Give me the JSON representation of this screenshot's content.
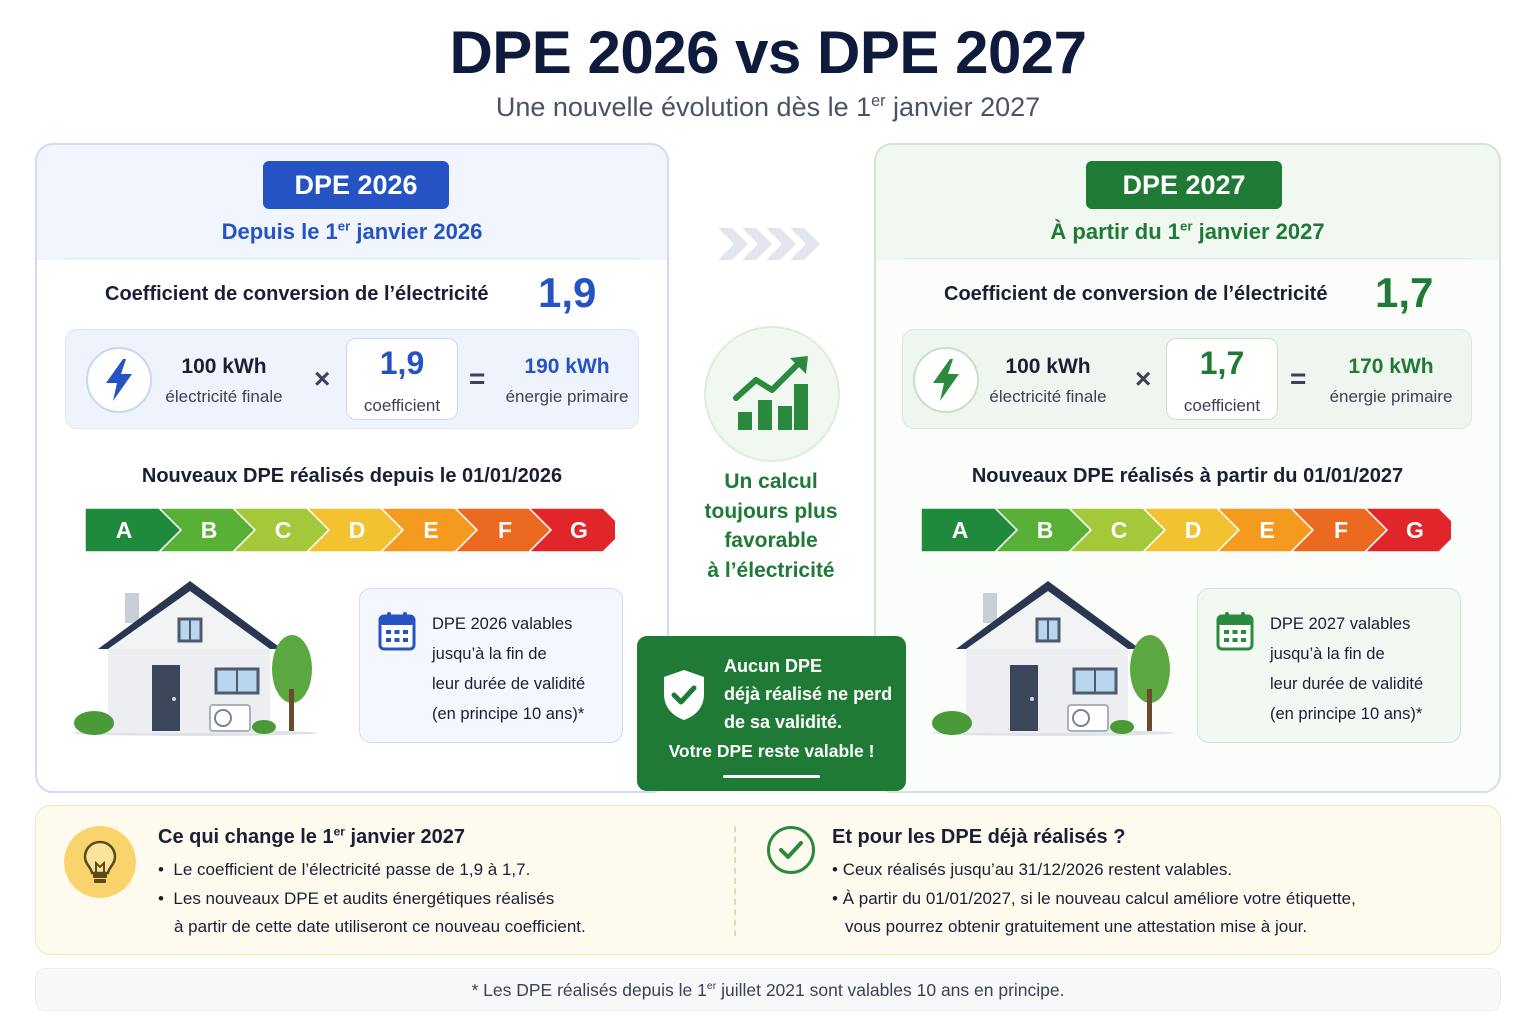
{
  "header": {
    "title": "DPE 2026 vs DPE 2027",
    "subtitle_pre": "Une nouvelle évolution dès le 1",
    "subtitle_sup": "er",
    "subtitle_post": " janvier 2027"
  },
  "left": {
    "badge": "DPE 2026",
    "since_pre": "Depuis le 1",
    "since_sup": "er",
    "since_post": " janvier 2026",
    "coef_label": "Coefficient de conversion de l’électricité",
    "coef_value": "1,9",
    "calc": {
      "input_value": "100 kWh",
      "input_label": "électricité finale",
      "times": "×",
      "coef_value": "1,9",
      "coef_label": "coefficient",
      "equals": "=",
      "result_value": "190 kWh",
      "result_label": "énergie primaire"
    },
    "scale_title": "Nouveaux DPE réalisés depuis le 01/01/2026",
    "info": [
      "DPE 2026 valables",
      "jusqu’à la fin de",
      "leur durée de validité",
      "(en principe 10 ans)*"
    ]
  },
  "right": {
    "badge": "DPE 2027",
    "since_pre": "À partir du 1",
    "since_sup": "er",
    "since_post": " janvier 2027",
    "coef_label": "Coefficient de conversion de l’électricité",
    "coef_value": "1,7",
    "calc": {
      "input_value": "100 kWh",
      "input_label": "électricité finale",
      "times": "×",
      "coef_value": "1,7",
      "coef_label": "coefficient",
      "equals": "=",
      "result_value": "170 kWh",
      "result_label": "énergie primaire"
    },
    "scale_title": "Nouveaux DPE réalisés à partir du 01/01/2027",
    "info": [
      "DPE 2027 valables",
      "jusqu’à la fin de",
      "leur durée de validité",
      "(en principe 10 ans)*"
    ]
  },
  "energy_scale": {
    "labels": [
      "A",
      "B",
      "C",
      "D",
      "E",
      "F",
      "G"
    ],
    "colors": [
      "#1f8a3c",
      "#58b036",
      "#a3c83a",
      "#f2c230",
      "#f39a1f",
      "#ec6a1f",
      "#e0262a"
    ]
  },
  "middle": {
    "text": [
      "Un calcul",
      "toujours plus",
      "favorable",
      "à l’électricité"
    ],
    "shield_text": [
      "Aucun DPE",
      "déjà réalisé ne perd",
      "de sa validité."
    ],
    "shield_footer": "Votre DPE reste valable !"
  },
  "bottom": {
    "left_head_pre": "Ce qui change le 1",
    "left_head_sup": "er",
    "left_head_post": " janvier 2027",
    "left_items": [
      "Le coefficient de l’électricité passe de 1,9 à 1,7.",
      "Les nouveaux DPE et audits énergétiques réalisés",
      "à partir de cette date utiliseront ce nouveau coefficient."
    ],
    "right_head": "Et pour les DPE déjà réalisés ?",
    "right_items": [
      "Ceux réalisés jusqu’au 31/12/2026 restent valables.",
      "À partir du 01/01/2027, si le nouveau calcul améliore votre étiquette,",
      "vous pourrez obtenir gratuitement une attestation mise à jour."
    ],
    "bullet": "•"
  },
  "footnote": {
    "pre": "* Les DPE réalisés depuis le 1",
    "sup": "er",
    "post": " juillet 2021 sont valables 10 ans en principe."
  },
  "colors": {
    "blue": "#2553c4",
    "green": "#1f7a36",
    "navy": "#0e1b3d"
  },
  "icons": [
    "lightning-icon",
    "growth-chart-icon",
    "shield-check-icon",
    "calendar-icon",
    "lightbulb-icon",
    "check-circle-icon",
    "chevrons-right-icon",
    "house-icon"
  ]
}
